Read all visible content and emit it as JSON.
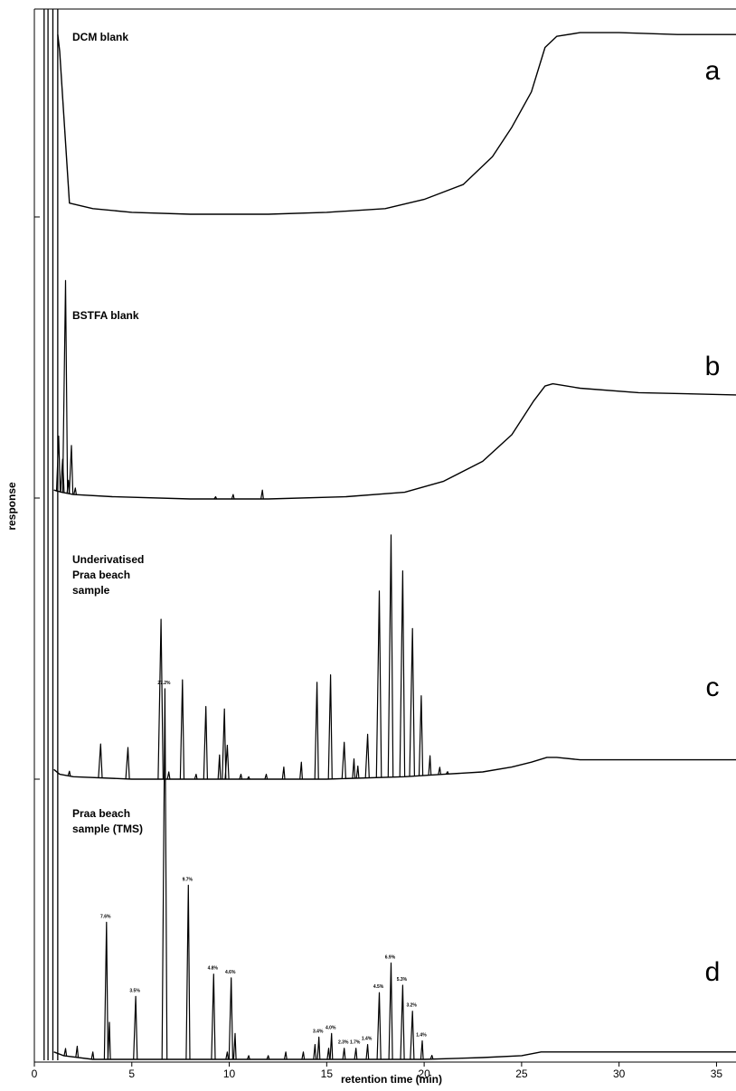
{
  "chart_data": {
    "type": "line",
    "xlabel": "retention time (min)",
    "ylabel": "response",
    "xlim": [
      0,
      36
    ],
    "xticks": [
      0,
      5,
      10,
      15,
      20,
      25,
      30,
      35
    ],
    "grid": false,
    "legend": "none",
    "colors": {
      "line": "#000000",
      "background": "#ffffff"
    },
    "panels": [
      {
        "letter": "a",
        "label_lines": [
          "DCM blank"
        ],
        "baseline_points": [
          [
            1.2,
            0.97
          ],
          [
            1.3,
            0.88
          ],
          [
            1.8,
            0.06
          ],
          [
            3,
            0.03
          ],
          [
            5,
            0.01
          ],
          [
            8,
            0.0
          ],
          [
            12,
            0.0
          ],
          [
            15,
            0.01
          ],
          [
            18,
            0.03
          ],
          [
            20,
            0.08
          ],
          [
            22,
            0.16
          ],
          [
            23.5,
            0.31
          ],
          [
            24.5,
            0.47
          ],
          [
            25.5,
            0.66
          ],
          [
            26.2,
            0.9
          ],
          [
            26.8,
            0.96
          ],
          [
            28,
            0.98
          ],
          [
            30,
            0.98
          ],
          [
            33,
            0.97
          ],
          [
            36,
            0.97
          ]
        ],
        "peaks": []
      },
      {
        "letter": "b",
        "label_lines": [
          "BSTFA blank"
        ],
        "baseline_points": [
          [
            1.0,
            0.04
          ],
          [
            1.4,
            0.03
          ],
          [
            2,
            0.02
          ],
          [
            4,
            0.01
          ],
          [
            8,
            0.0
          ],
          [
            12,
            0.0
          ],
          [
            16,
            0.01
          ],
          [
            19,
            0.03
          ],
          [
            21,
            0.08
          ],
          [
            23,
            0.17
          ],
          [
            24.5,
            0.29
          ],
          [
            25.6,
            0.44
          ],
          [
            26.2,
            0.51
          ],
          [
            26.6,
            0.52
          ],
          [
            28,
            0.5
          ],
          [
            31,
            0.48
          ],
          [
            36,
            0.47
          ]
        ],
        "peaks": [
          {
            "rt": 1.25,
            "height": 0.25
          },
          {
            "rt": 1.45,
            "height": 0.15
          },
          {
            "rt": 1.6,
            "height": 0.96
          },
          {
            "rt": 1.75,
            "height": 0.06
          },
          {
            "rt": 1.9,
            "height": 0.22
          },
          {
            "rt": 2.1,
            "height": 0.03
          },
          {
            "rt": 9.3,
            "height": 0.01
          },
          {
            "rt": 10.2,
            "height": 0.02
          },
          {
            "rt": 11.7,
            "height": 0.04
          }
        ]
      },
      {
        "letter": "c",
        "label_lines": [
          "Underivatised",
          "Praa beach",
          "sample"
        ],
        "baseline_points": [
          [
            1.0,
            0.04
          ],
          [
            1.3,
            0.02
          ],
          [
            2,
            0.01
          ],
          [
            5,
            0.0
          ],
          [
            10,
            0.0
          ],
          [
            15,
            0.0
          ],
          [
            19,
            0.01
          ],
          [
            21,
            0.02
          ],
          [
            23,
            0.03
          ],
          [
            24.5,
            0.05
          ],
          [
            25.5,
            0.07
          ],
          [
            26.3,
            0.09
          ],
          [
            26.8,
            0.09
          ],
          [
            28,
            0.08
          ],
          [
            31,
            0.08
          ],
          [
            36,
            0.08
          ]
        ],
        "peaks": [
          {
            "rt": 1.8,
            "height": 0.02
          },
          {
            "rt": 3.4,
            "height": 0.14
          },
          {
            "rt": 4.8,
            "height": 0.13
          },
          {
            "rt": 6.5,
            "height": 0.66
          },
          {
            "rt": 6.9,
            "height": 0.03
          },
          {
            "rt": 7.6,
            "height": 0.41
          },
          {
            "rt": 8.3,
            "height": 0.02
          },
          {
            "rt": 8.8,
            "height": 0.3
          },
          {
            "rt": 9.5,
            "height": 0.1
          },
          {
            "rt": 9.75,
            "height": 0.29
          },
          {
            "rt": 9.9,
            "height": 0.14
          },
          {
            "rt": 10.6,
            "height": 0.02
          },
          {
            "rt": 11,
            "height": 0.01
          },
          {
            "rt": 11.9,
            "height": 0.02
          },
          {
            "rt": 12.8,
            "height": 0.05
          },
          {
            "rt": 13.7,
            "height": 0.07
          },
          {
            "rt": 14.5,
            "height": 0.4
          },
          {
            "rt": 15.2,
            "height": 0.43
          },
          {
            "rt": 15.9,
            "height": 0.15
          },
          {
            "rt": 16.4,
            "height": 0.08
          },
          {
            "rt": 16.6,
            "height": 0.05
          },
          {
            "rt": 17.1,
            "height": 0.18
          },
          {
            "rt": 17.7,
            "height": 0.77
          },
          {
            "rt": 18.3,
            "height": 1.0
          },
          {
            "rt": 18.9,
            "height": 0.85
          },
          {
            "rt": 19.4,
            "height": 0.61
          },
          {
            "rt": 19.85,
            "height": 0.33
          },
          {
            "rt": 20.3,
            "height": 0.08
          },
          {
            "rt": 20.8,
            "height": 0.03
          },
          {
            "rt": 21.2,
            "height": 0.01
          }
        ]
      },
      {
        "letter": "d",
        "label_lines": [
          "Praa beach",
          "sample (TMS)"
        ],
        "baseline_points": [
          [
            1.0,
            0.02
          ],
          [
            1.5,
            0.01
          ],
          [
            3,
            0.0
          ],
          [
            10,
            0.0
          ],
          [
            15,
            0.0
          ],
          [
            20,
            0.0
          ],
          [
            23,
            0.005
          ],
          [
            25,
            0.01
          ],
          [
            26,
            0.02
          ],
          [
            27,
            0.02
          ],
          [
            36,
            0.02
          ]
        ],
        "peaks": [
          {
            "rt": 1.6,
            "height": 0.02
          },
          {
            "rt": 2.2,
            "height": 0.03
          },
          {
            "rt": 3.0,
            "height": 0.02
          },
          {
            "rt": 3.7,
            "height": 0.37,
            "label": "7.6%"
          },
          {
            "rt": 3.85,
            "height": 0.1
          },
          {
            "rt": 5.2,
            "height": 0.17,
            "label": "3.5%"
          },
          {
            "rt": 6.7,
            "height": 1.0,
            "label": "27.2%"
          },
          {
            "rt": 7.9,
            "height": 0.47,
            "label": "9.7%"
          },
          {
            "rt": 9.2,
            "height": 0.23,
            "label": "4.8%"
          },
          {
            "rt": 9.9,
            "height": 0.02
          },
          {
            "rt": 10.1,
            "height": 0.22,
            "label": "4.6%"
          },
          {
            "rt": 10.3,
            "height": 0.07
          },
          {
            "rt": 11.0,
            "height": 0.01
          },
          {
            "rt": 12.0,
            "height": 0.01
          },
          {
            "rt": 12.9,
            "height": 0.02
          },
          {
            "rt": 13.8,
            "height": 0.02
          },
          {
            "rt": 14.4,
            "height": 0.04
          },
          {
            "rt": 14.6,
            "height": 0.06,
            "label": "3.4%"
          },
          {
            "rt": 15.1,
            "height": 0.03
          },
          {
            "rt": 15.25,
            "height": 0.07,
            "label": "4.0%"
          },
          {
            "rt": 15.9,
            "height": 0.03,
            "label": "2.3%"
          },
          {
            "rt": 16.5,
            "height": 0.03,
            "label": "1.7%"
          },
          {
            "rt": 17.1,
            "height": 0.04,
            "label": "1.4%"
          },
          {
            "rt": 17.7,
            "height": 0.18,
            "label": "4.5%"
          },
          {
            "rt": 18.3,
            "height": 0.26,
            "label": "6.9%"
          },
          {
            "rt": 18.9,
            "height": 0.2,
            "label": "5.3%"
          },
          {
            "rt": 19.4,
            "height": 0.13,
            "label": "3.2%"
          },
          {
            "rt": 19.9,
            "height": 0.05,
            "label": "1.4%"
          },
          {
            "rt": 20.4,
            "height": 0.01
          }
        ]
      }
    ],
    "solvent_front": {
      "rt_start": 0.5,
      "rt_end": 1.2
    }
  }
}
